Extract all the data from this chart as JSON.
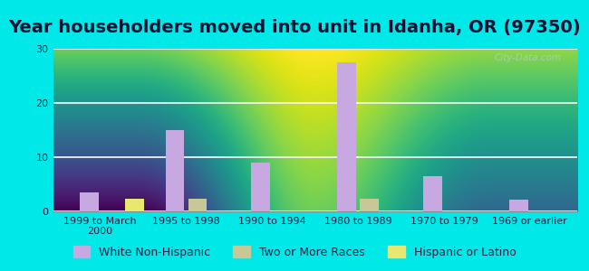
{
  "title": "Year householders moved into unit in Idanha, OR (97350)",
  "categories": [
    "1999 to March\n2000",
    "1995 to 1998",
    "1990 to 1994",
    "1980 to 1989",
    "1970 to 1979",
    "1969 or earlier"
  ],
  "white_non_hispanic": [
    3.5,
    15.0,
    9.0,
    27.5,
    6.5,
    2.2
  ],
  "two_or_more_races": [
    0,
    2.3,
    0,
    2.3,
    0,
    0
  ],
  "hispanic_or_latino": [
    2.3,
    0,
    0,
    0,
    0,
    0
  ],
  "bar_color_white": "#c8a8e0",
  "bar_color_two": "#c8c896",
  "bar_color_hisp": "#e8e870",
  "bg_outer": "#00e8e8",
  "bg_plot": "#e8f5ee",
  "ylim": [
    0,
    30
  ],
  "yticks": [
    0,
    10,
    20,
    30
  ],
  "bar_width": 0.22,
  "title_fontsize": 14,
  "legend_fontsize": 9,
  "tick_fontsize": 8,
  "watermark": "City-Data.com",
  "watermark_color": "#b0cccc"
}
